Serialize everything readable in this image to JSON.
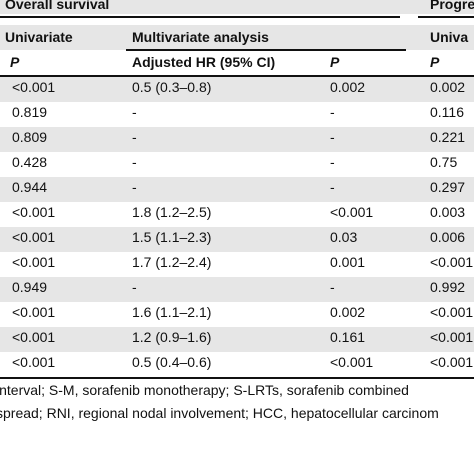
{
  "table": {
    "group_headers": {
      "overall": "Overall survival",
      "progression": "Progre"
    },
    "sub_headers": {
      "univariate": "Univariate",
      "multivariate": "Multivariate analysis",
      "prog_univariate": "Univa"
    },
    "column_headers": {
      "p1": "P",
      "adjusted_hr": "Adjusted HR (95% CI)",
      "p2": "P",
      "p3": "P"
    },
    "rows": [
      [
        "<0.001",
        "0.5 (0.3–0.8)",
        "0.002",
        "0.002"
      ],
      [
        "0.819",
        "-",
        "-",
        "0.116"
      ],
      [
        "0.809",
        "-",
        "-",
        "0.221"
      ],
      [
        "0.428",
        "-",
        "-",
        "0.75"
      ],
      [
        "0.944",
        "-",
        "-",
        "0.297"
      ],
      [
        "<0.001",
        "1.8 (1.2–2.5)",
        "<0.001",
        "0.003"
      ],
      [
        "<0.001",
        "1.5 (1.1–2.3)",
        "0.03",
        "0.006"
      ],
      [
        "<0.001",
        "1.7 (1.2–2.4)",
        "0.001",
        "<0.001"
      ],
      [
        "0.949",
        "-",
        "-",
        "0.992"
      ],
      [
        "<0.001",
        "1.6 (1.1–2.1)",
        "0.002",
        "<0.001"
      ],
      [
        "<0.001",
        "1.2 (0.9–1.6)",
        "0.161",
        "<0.001"
      ],
      [
        "<0.001",
        "0.5 (0.4–0.6)",
        "<0.001",
        "<0.001"
      ]
    ]
  },
  "footnote": {
    "line1": "interval; S-M, sorafenib monotherapy; S-LRTs, sorafenib combined",
    "line2": "spread; RNI, regional nodal involvement; HCC, hepatocellular carcinom"
  }
}
